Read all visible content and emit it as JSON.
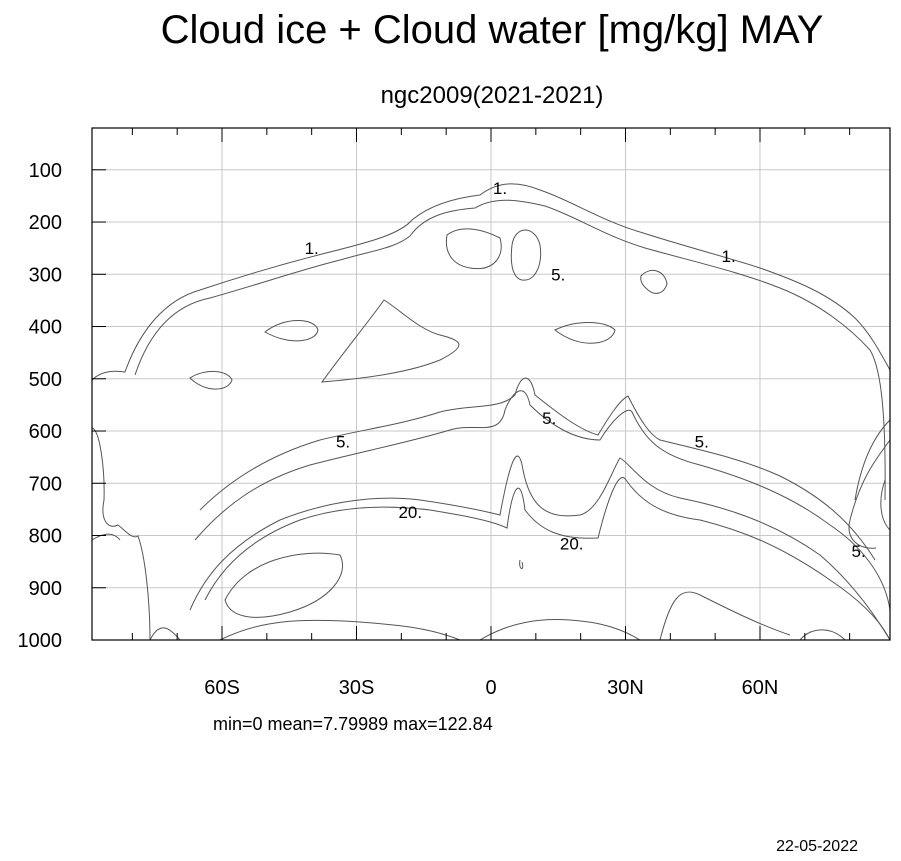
{
  "chart_data": {
    "type": "contour",
    "title": "Cloud ice + Cloud water [mg/kg] MAY",
    "subtitle": "ngc2009(2021-2021)",
    "x_ticks": [
      {
        "value": -60,
        "label": "60S"
      },
      {
        "value": -30,
        "label": "30S"
      },
      {
        "value": 0,
        "label": "0"
      },
      {
        "value": 30,
        "label": "30N"
      },
      {
        "value": 60,
        "label": "60N"
      }
    ],
    "y_ticks": [
      100,
      200,
      300,
      400,
      500,
      600,
      700,
      800,
      900,
      1000
    ],
    "xlim": [
      -89,
      89
    ],
    "ylim": [
      1000,
      20
    ],
    "grid": true,
    "contour_levels": [
      "1.",
      "5.",
      "20."
    ],
    "contour_labels": [
      {
        "text": "1.",
        "lat": -40,
        "p": 250
      },
      {
        "text": "1.",
        "lat": 2,
        "p": 135
      },
      {
        "text": "1.",
        "lat": 53,
        "p": 265
      },
      {
        "text": "5.",
        "lat": 15,
        "p": 300
      },
      {
        "text": "5.",
        "lat": 13,
        "p": 575
      },
      {
        "text": "5.",
        "lat": -33,
        "p": 620
      },
      {
        "text": "5.",
        "lat": 47,
        "p": 620
      },
      {
        "text": "5.",
        "lat": 82,
        "p": 830
      },
      {
        "text": "20.",
        "lat": -18,
        "p": 755
      },
      {
        "text": "20.",
        "lat": 18,
        "p": 815
      }
    ],
    "stats": "min=0   mean=7.79989   max=122.84"
  },
  "footer": {
    "date": "22-05-2022"
  }
}
